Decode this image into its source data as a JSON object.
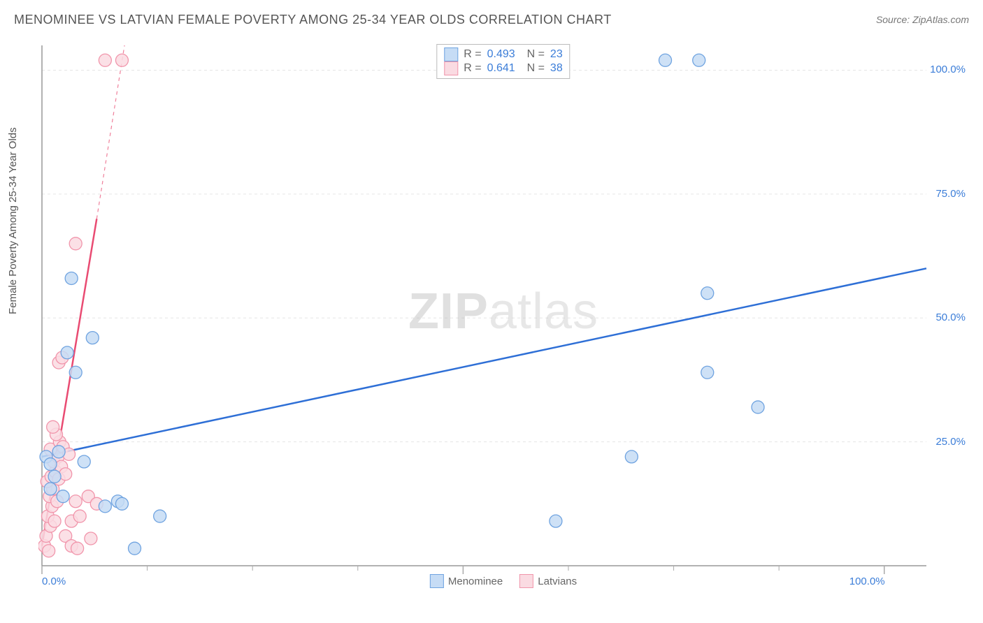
{
  "title": "MENOMINEE VS LATVIAN FEMALE POVERTY AMONG 25-34 YEAR OLDS CORRELATION CHART",
  "source": "Source: ZipAtlas.com",
  "ylabel": "Female Poverty Among 25-34 Year Olds",
  "watermark_bold": "ZIP",
  "watermark_rest": "atlas",
  "chart": {
    "type": "scatter",
    "xlim": [
      0,
      105
    ],
    "ylim": [
      0,
      105
    ],
    "background_color": "#ffffff",
    "grid_color": "#e5e5e5",
    "grid_dash": "4,4",
    "axis_line_color": "#999999",
    "axis_tick_color": "#aaaaaa",
    "axis_label_color": "#3b7dd8",
    "x_ticks_major": [
      0,
      50,
      100
    ],
    "x_ticks_minor": [
      12.5,
      25,
      37.5,
      62.5,
      75,
      87.5
    ],
    "x_tick_labels": {
      "0": "0.0%",
      "100": "100.0%"
    },
    "y_grid_lines": [
      25,
      50,
      75,
      100
    ],
    "y_tick_labels": {
      "25": "25.0%",
      "50": "50.0%",
      "75": "75.0%",
      "100": "100.0%"
    },
    "series": [
      {
        "name": "Menominee",
        "marker_fill": "#c6dcf5",
        "marker_stroke": "#6fa3e0",
        "marker_radius": 9,
        "line_color": "#2e6fd6",
        "line_width": 2.5,
        "R": "0.493",
        "N": "23",
        "trend_line": {
          "x1": 0,
          "y1": 22,
          "x2": 105,
          "y2": 60
        },
        "points": [
          [
            0.5,
            22
          ],
          [
            1,
            20.5
          ],
          [
            1,
            15.5
          ],
          [
            1.5,
            18
          ],
          [
            2.5,
            14
          ],
          [
            2,
            23
          ],
          [
            3,
            43
          ],
          [
            3.5,
            58
          ],
          [
            4,
            39
          ],
          [
            5,
            21
          ],
          [
            6,
            46
          ],
          [
            7.5,
            12
          ],
          [
            9,
            13
          ],
          [
            9.5,
            12.5
          ],
          [
            11,
            3.5
          ],
          [
            14,
            10
          ],
          [
            61,
            9
          ],
          [
            70,
            22
          ],
          [
            74,
            102
          ],
          [
            78,
            102
          ],
          [
            79,
            39
          ],
          [
            79,
            55
          ],
          [
            85,
            32
          ]
        ]
      },
      {
        "name": "Latvians",
        "marker_fill": "#fadbe2",
        "marker_stroke": "#f195ab",
        "marker_radius": 9,
        "line_color": "#e94b72",
        "line_width": 2.5,
        "R": "0.641",
        "N": "38",
        "trend_line_solid": {
          "x1": 0,
          "y1": 4,
          "x2": 6.5,
          "y2": 70
        },
        "trend_line_dashed": {
          "x1": 6.5,
          "y1": 70,
          "x2": 9.8,
          "y2": 105
        },
        "points": [
          [
            0.3,
            4
          ],
          [
            0.5,
            6
          ],
          [
            0.8,
            3
          ],
          [
            1,
            8
          ],
          [
            0.7,
            10
          ],
          [
            1.2,
            12
          ],
          [
            1.5,
            9
          ],
          [
            0.9,
            14
          ],
          [
            1.3,
            15.5
          ],
          [
            1.8,
            13
          ],
          [
            0.6,
            17
          ],
          [
            1.1,
            18
          ],
          [
            1.6,
            19
          ],
          [
            2,
            17.5
          ],
          [
            1.4,
            21
          ],
          [
            1.9,
            22
          ],
          [
            1,
            23.5
          ],
          [
            2.3,
            20
          ],
          [
            2.8,
            18.5
          ],
          [
            2.1,
            25
          ],
          [
            1.7,
            26.5
          ],
          [
            2.5,
            24
          ],
          [
            3.2,
            22.5
          ],
          [
            1.3,
            28
          ],
          [
            2,
            41
          ],
          [
            2.4,
            42
          ],
          [
            3.5,
            9
          ],
          [
            4,
            13
          ],
          [
            4.5,
            10
          ],
          [
            5.5,
            14
          ],
          [
            6.5,
            12.5
          ],
          [
            2.8,
            6
          ],
          [
            3.5,
            4
          ],
          [
            4.2,
            3.5
          ],
          [
            4,
            65
          ],
          [
            7.5,
            102
          ],
          [
            9.5,
            102
          ],
          [
            5.8,
            5.5
          ]
        ]
      }
    ]
  },
  "legend_bottom": [
    {
      "label": "Menominee",
      "fill": "#c6dcf5",
      "stroke": "#6fa3e0"
    },
    {
      "label": "Latvians",
      "fill": "#fadbe2",
      "stroke": "#f195ab"
    }
  ]
}
